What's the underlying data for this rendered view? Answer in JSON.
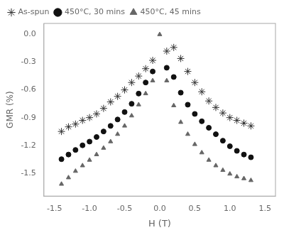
{
  "chart_data": {
    "type": "scatter",
    "xlabel": "H (T)",
    "ylabel": "GMR (%)",
    "xlim": [
      -1.65,
      1.65
    ],
    "ylim": [
      -1.75,
      0.12
    ],
    "xticks": [
      -1.5,
      {
        "value": -1.0,
        "label": "-1.0"
      },
      -0.5,
      {
        "value": 0.0,
        "label": "0.0"
      },
      0.5,
      {
        "value": 1.0,
        "label": "1.0"
      },
      1.5
    ],
    "yticks": [
      {
        "value": 0.0,
        "label": "0.0"
      },
      -0.3,
      -0.6,
      -0.9,
      -1.2,
      -1.5
    ],
    "grid": false,
    "legend": "upper left",
    "series": [
      {
        "name": "As-spun",
        "color": "#333333",
        "marker": "star",
        "x": [
          -1.4,
          -1.3,
          -1.2,
          -1.1,
          -1.0,
          -0.9,
          -0.8,
          -0.7,
          -0.6,
          -0.5,
          -0.4,
          -0.3,
          -0.2,
          -0.1,
          0.1,
          0.2,
          0.3,
          0.4,
          0.5,
          0.6,
          0.7,
          0.8,
          0.9,
          1.0,
          1.1,
          1.2,
          1.3
        ],
        "values": [
          -1.05,
          -1.0,
          -0.97,
          -0.93,
          -0.9,
          -0.86,
          -0.8,
          -0.73,
          -0.67,
          -0.6,
          -0.52,
          -0.45,
          -0.37,
          -0.28,
          -0.18,
          -0.14,
          -0.26,
          -0.4,
          -0.52,
          -0.62,
          -0.72,
          -0.79,
          -0.85,
          -0.9,
          -0.93,
          -0.96,
          -0.99
        ]
      },
      {
        "name": "450°C, 30 mins",
        "color": "#111111",
        "marker": "circle",
        "x": [
          -1.4,
          -1.3,
          -1.2,
          -1.1,
          -1.0,
          -0.9,
          -0.8,
          -0.7,
          -0.6,
          -0.5,
          -0.4,
          -0.3,
          -0.2,
          -0.1,
          0.1,
          0.2,
          0.3,
          0.4,
          0.5,
          0.6,
          0.7,
          0.8,
          0.9,
          1.0,
          1.1,
          1.2,
          1.3
        ],
        "values": [
          -1.35,
          -1.3,
          -1.25,
          -1.2,
          -1.16,
          -1.11,
          -1.05,
          -0.99,
          -0.92,
          -0.84,
          -0.75,
          -0.64,
          -0.52,
          -0.4,
          -0.36,
          -0.46,
          -0.63,
          -0.76,
          -0.86,
          -0.94,
          -1.01,
          -1.08,
          -1.15,
          -1.21,
          -1.26,
          -1.3,
          -1.33
        ]
      },
      {
        "name": "450°C, 45 mins",
        "color": "#666666",
        "marker": "triangle",
        "x": [
          -1.4,
          -1.3,
          -1.2,
          -1.1,
          -1.0,
          -0.9,
          -0.8,
          -0.7,
          -0.6,
          -0.5,
          -0.4,
          -0.3,
          -0.2,
          -0.1,
          0.0,
          0.1,
          0.2,
          0.3,
          0.4,
          0.5,
          0.6,
          0.7,
          0.8,
          0.9,
          1.0,
          1.1,
          1.2,
          1.3
        ],
        "values": [
          -1.62,
          -1.55,
          -1.48,
          -1.42,
          -1.36,
          -1.3,
          -1.23,
          -1.16,
          -1.08,
          -0.99,
          -0.88,
          -0.76,
          -0.64,
          -0.5,
          0.0,
          -0.5,
          -0.77,
          -0.95,
          -1.08,
          -1.19,
          -1.28,
          -1.36,
          -1.42,
          -1.47,
          -1.51,
          -1.54,
          -1.56,
          -1.58
        ]
      }
    ]
  }
}
